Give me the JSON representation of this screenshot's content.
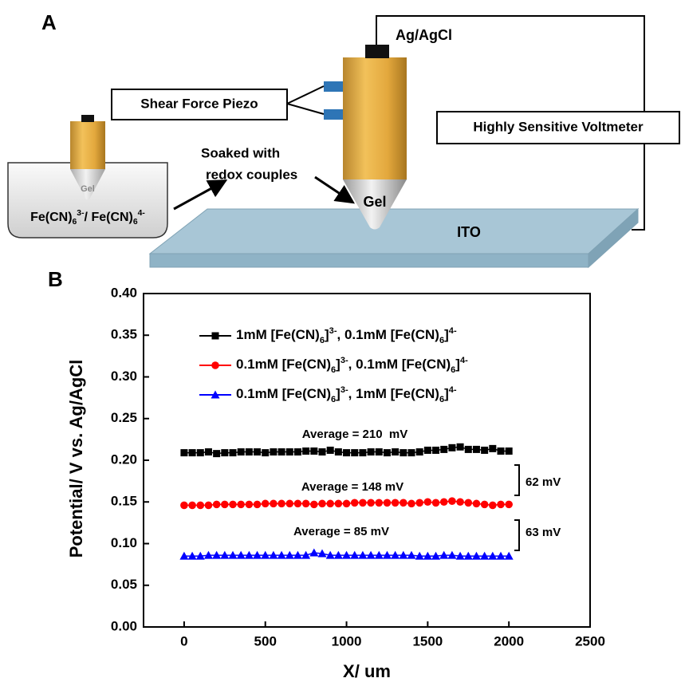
{
  "diagram": {
    "panel_label": "A",
    "electrode_label": "Ag/AgCl",
    "piezo_label": "Shear Force Piezo",
    "voltmeter_label": "Highly Sensitive Voltmeter",
    "soak_label": [
      "Soaked with",
      "redox couples"
    ],
    "gel_label": "Gel",
    "small_gel_label": "Gel",
    "substrate_label": "ITO",
    "solution_label": "Fe(CN)63-/ Fe(CN)64-"
  },
  "chart_data": {
    "type": "line",
    "panel_label": "B",
    "xlabel": "X/ um",
    "ylabel": "Potential/ V vs. Ag/AgCl",
    "x": [
      0,
      50,
      100,
      150,
      200,
      250,
      300,
      350,
      400,
      450,
      500,
      550,
      600,
      650,
      700,
      750,
      800,
      850,
      900,
      950,
      1000,
      1050,
      1100,
      1150,
      1200,
      1250,
      1300,
      1350,
      1400,
      1450,
      1500,
      1550,
      1600,
      1650,
      1700,
      1750,
      1800,
      1850,
      1900,
      1950,
      2000
    ],
    "series": [
      {
        "name": "1mM [Fe(CN)6]3-, 0.1mM [Fe(CN)6]4-",
        "color": "#000000",
        "marker": "square",
        "values": [
          0.209,
          0.209,
          0.209,
          0.21,
          0.208,
          0.209,
          0.209,
          0.21,
          0.21,
          0.21,
          0.209,
          0.21,
          0.21,
          0.21,
          0.21,
          0.211,
          0.211,
          0.21,
          0.212,
          0.21,
          0.209,
          0.209,
          0.209,
          0.21,
          0.21,
          0.209,
          0.21,
          0.209,
          0.209,
          0.21,
          0.212,
          0.212,
          0.213,
          0.215,
          0.216,
          0.213,
          0.213,
          0.212,
          0.214,
          0.211,
          0.211
        ]
      },
      {
        "name": "0.1mM [Fe(CN)6]3-, 0.1mM [Fe(CN)6]4-",
        "color": "#ff0000",
        "marker": "circle",
        "values": [
          0.146,
          0.146,
          0.146,
          0.146,
          0.147,
          0.147,
          0.147,
          0.147,
          0.147,
          0.147,
          0.148,
          0.148,
          0.148,
          0.148,
          0.148,
          0.148,
          0.147,
          0.148,
          0.148,
          0.148,
          0.148,
          0.149,
          0.149,
          0.149,
          0.149,
          0.149,
          0.149,
          0.149,
          0.148,
          0.149,
          0.15,
          0.149,
          0.15,
          0.151,
          0.15,
          0.149,
          0.148,
          0.147,
          0.146,
          0.147,
          0.147
        ]
      },
      {
        "name": "0.1mM [Fe(CN)6]3-, 1mM [Fe(CN)6]4-",
        "color": "#0000ff",
        "marker": "triangle",
        "values": [
          0.085,
          0.085,
          0.085,
          0.086,
          0.086,
          0.086,
          0.086,
          0.086,
          0.086,
          0.086,
          0.086,
          0.086,
          0.086,
          0.086,
          0.086,
          0.086,
          0.089,
          0.088,
          0.086,
          0.086,
          0.086,
          0.086,
          0.086,
          0.086,
          0.086,
          0.086,
          0.086,
          0.086,
          0.086,
          0.085,
          0.085,
          0.085,
          0.086,
          0.086,
          0.085,
          0.085,
          0.085,
          0.085,
          0.085,
          0.085,
          0.085
        ]
      }
    ],
    "xlim": [
      -250,
      2500
    ],
    "xticks": [
      0,
      500,
      1000,
      1500,
      2000,
      2500
    ],
    "ylim": [
      0,
      0.4
    ],
    "yticks": [
      {
        "value": 0,
        "label": "0.00"
      },
      {
        "value": 0.05,
        "label": "0.05"
      },
      {
        "value": 0.1,
        "label": "0.10"
      },
      {
        "value": 0.15,
        "label": "0.15"
      },
      {
        "value": 0.2,
        "label": "0.20"
      },
      {
        "value": 0.25,
        "label": "0.25"
      },
      {
        "value": 0.3,
        "label": "0.30"
      },
      {
        "value": 0.35,
        "label": "0.35"
      },
      {
        "value": 0.4,
        "label": "0.40"
      }
    ],
    "legend": "upper left",
    "annotations": [
      "Average = 210  mV",
      "Average = 148 mV",
      "Average = 85 mV",
      "62 mV",
      "63 mV"
    ]
  }
}
